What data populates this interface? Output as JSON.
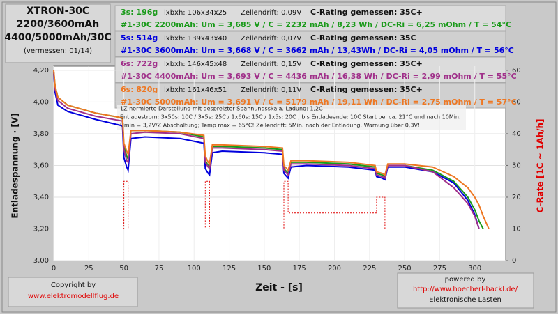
{
  "chart_data": {
    "type": "line",
    "title": [
      "XTRON-30C",
      "2200/3600mAh",
      "4400/5000mAh/30C",
      "(vermessen: 01/14)"
    ],
    "info": [
      {
        "pack": "3s: 196g",
        "size": "lxbxh: 106x34x25",
        "drift": "Zellendrift: 0,09V",
        "rating": "C-Rating gemessen: 35C+",
        "result": "#1-30C 2200mAh:   Um = 3,685 V / C = 2232 mAh /  8,23 Wh / DC-Ri = 6,25 mOhm / T = 54°C"
      },
      {
        "pack": "5s: 514g",
        "size": "lxbxh: 139x43x40",
        "drift": "Zellendrift: 0,07V",
        "rating": "C-Rating gemessen: 35C",
        "result": "#1-30C 3600mAh:   Um = 3,668 V / C = 3662 mAh / 13,43Wh / DC-Ri = 4,05 mOhm / T = 56°C"
      },
      {
        "pack": "6s: 722g",
        "size": "lxbxh: 146x45x48",
        "drift": "Zellendrift: 0,15V",
        "rating": "C-Rating gemessen: 35C+",
        "result": "#1-30C 4400mAh:  Um = 3,693 V / C = 4436 mAh / 16,38 Wh / DC-Ri = 2,99 mOhm / T = 55°C"
      },
      {
        "pack": "6s: 820g",
        "size": "lxbxh: 161x46x51",
        "drift": "Zellendrift: 0,11V",
        "rating": "C-Rating gemessen: 35C+",
        "result": "#1-30C 5000mAh:  Um = 3,691 V / C = 5179 mAh / 19,11 Wh / DC-Ri = 2,75 mOhm / T = 57°C"
      }
    ],
    "annotations": [
      "1Z normierte Darstellung mit gespreizter Spannungsskala. Ladung: 1,2C",
      "Entladestrom: 3x50s: 10C / 3x5s: 25C / 1x60s: 15C / 1x5s: 20C ;  bis Entladeende: 10C  Start bei ca. 21°C und nach 10Min.",
      "Umin = 3,2V/Z Abschaltung; Temp max = 65°C! Zellendrift: 5Min. nach der Entladung, Warnung über 0,3V!"
    ],
    "x_label": "Zeit - [s]",
    "y_label": "Entladespannung · [V]",
    "y2_label": "C-Rate [1C ~ 1Ah/h]",
    "footer": {
      "left": [
        "Copyright by",
        "www.elektromodellflug.de"
      ],
      "right": [
        "powered by",
        "http://www.hoecherl-hackl.de/",
        "Elektronische Lasten"
      ]
    },
    "xlim": [
      0,
      322
    ],
    "xticks": [
      0,
      25,
      50,
      75,
      100,
      125,
      150,
      175,
      200,
      225,
      250,
      275,
      300
    ],
    "ylim": [
      3,
      4.226
    ],
    "yticks": [
      {
        "value": 3,
        "label": "3,00"
      },
      {
        "value": 3.2,
        "label": "3,20"
      },
      {
        "value": 3.4,
        "label": "3,40"
      },
      {
        "value": 3.6,
        "label": "3,60"
      },
      {
        "value": 3.8,
        "label": "3,80"
      },
      {
        "value": 4,
        "label": "4,00"
      },
      {
        "value": 4.2,
        "label": "4,20"
      }
    ],
    "y2lim": [
      0,
      61.3
    ],
    "y2ticks": [
      0,
      10,
      20,
      30,
      40,
      50,
      60
    ],
    "grid": true,
    "x": [
      0,
      1,
      3,
      10,
      30,
      49,
      50,
      52,
      53,
      55,
      65,
      90,
      107,
      108,
      110,
      111,
      113,
      120,
      150,
      163,
      164,
      166,
      167,
      169,
      180,
      210,
      229,
      230,
      234,
      236,
      238,
      250,
      270,
      285,
      295,
      300,
      303,
      306,
      310
    ],
    "series": [
      {
        "color": "#1a9a1a",
        "values": [
          4.19,
          4.1,
          4.03,
          3.98,
          3.93,
          3.9,
          3.72,
          3.66,
          3.64,
          3.82,
          3.82,
          3.81,
          3.78,
          3.63,
          3.6,
          3.59,
          3.72,
          3.72,
          3.71,
          3.7,
          3.58,
          3.56,
          3.55,
          3.62,
          3.62,
          3.61,
          3.59,
          3.55,
          3.54,
          3.53,
          3.6,
          3.6,
          3.57,
          3.5,
          3.4,
          3.32,
          3.25,
          3.2,
          null
        ]
      },
      {
        "color": "#0000dd",
        "values": [
          4.18,
          4.06,
          3.98,
          3.94,
          3.89,
          3.85,
          3.65,
          3.59,
          3.57,
          3.77,
          3.78,
          3.77,
          3.74,
          3.58,
          3.55,
          3.54,
          3.68,
          3.69,
          3.68,
          3.67,
          3.55,
          3.53,
          3.52,
          3.59,
          3.6,
          3.59,
          3.57,
          3.53,
          3.52,
          3.51,
          3.59,
          3.59,
          3.56,
          3.49,
          3.38,
          3.29,
          3.2,
          null,
          null
        ]
      },
      {
        "color": "#a0308a",
        "values": [
          4.19,
          4.08,
          4.01,
          3.96,
          3.91,
          3.88,
          3.7,
          3.63,
          3.62,
          3.8,
          3.81,
          3.8,
          3.77,
          3.62,
          3.59,
          3.58,
          3.71,
          3.71,
          3.7,
          3.69,
          3.57,
          3.55,
          3.54,
          3.61,
          3.61,
          3.6,
          3.58,
          3.54,
          3.53,
          3.52,
          3.6,
          3.6,
          3.56,
          3.46,
          3.36,
          3.28,
          3.2,
          null,
          null
        ]
      },
      {
        "color": "#ee7722",
        "values": [
          4.2,
          4.1,
          4.03,
          3.98,
          3.93,
          3.9,
          3.74,
          3.69,
          3.67,
          3.82,
          3.82,
          3.81,
          3.79,
          3.66,
          3.62,
          3.61,
          3.73,
          3.73,
          3.72,
          3.71,
          3.6,
          3.58,
          3.57,
          3.63,
          3.63,
          3.62,
          3.6,
          3.56,
          3.55,
          3.54,
          3.61,
          3.61,
          3.59,
          3.53,
          3.46,
          3.4,
          3.35,
          3.28,
          3.2
        ]
      },
      {
        "color": "#e00000",
        "axis": "y2",
        "dashed": true,
        "x": [
          0,
          50,
          50,
          53,
          53,
          108,
          108,
          111,
          111,
          164,
          164,
          167,
          167,
          230,
          230,
          236,
          236,
          322
        ],
        "values": [
          10,
          10,
          25,
          25,
          10,
          10,
          25,
          25,
          10,
          10,
          25,
          25,
          15,
          15,
          20,
          20,
          10,
          10
        ]
      }
    ]
  }
}
